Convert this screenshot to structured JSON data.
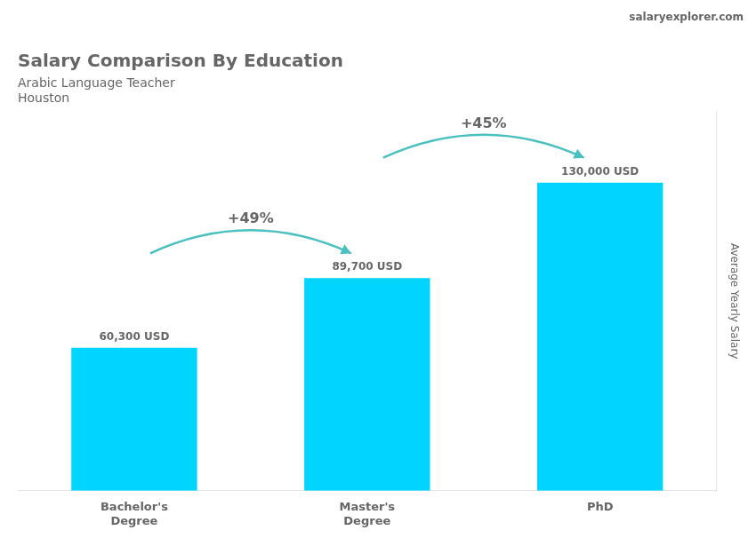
{
  "chart_data": {
    "type": "bar",
    "title": "Salary Comparison By Education",
    "subtitle": [
      "Arabic Language Teacher",
      "Houston"
    ],
    "ylabel": "Average Yearly Salary",
    "categories": [
      "Bachelor's\nDegree",
      "Master's\nDegree",
      "PhD"
    ],
    "values": [
      60300,
      89700,
      130000
    ],
    "value_labels": [
      "60,300 USD",
      "89,700 USD",
      "130,000 USD"
    ],
    "data_labels": true,
    "color": "#00d4ff",
    "ylim": [
      0,
      160000
    ],
    "grid": false,
    "tick_labels": "x",
    "annotations": [
      {
        "text": "+49%",
        "from": "Bachelor's\nDegree",
        "to": "Master's\nDegree"
      },
      {
        "text": "+45%",
        "from": "Master's\nDegree",
        "to": "PhD"
      },
      {
        "text": "salaryexplorer.com"
      }
    ]
  }
}
